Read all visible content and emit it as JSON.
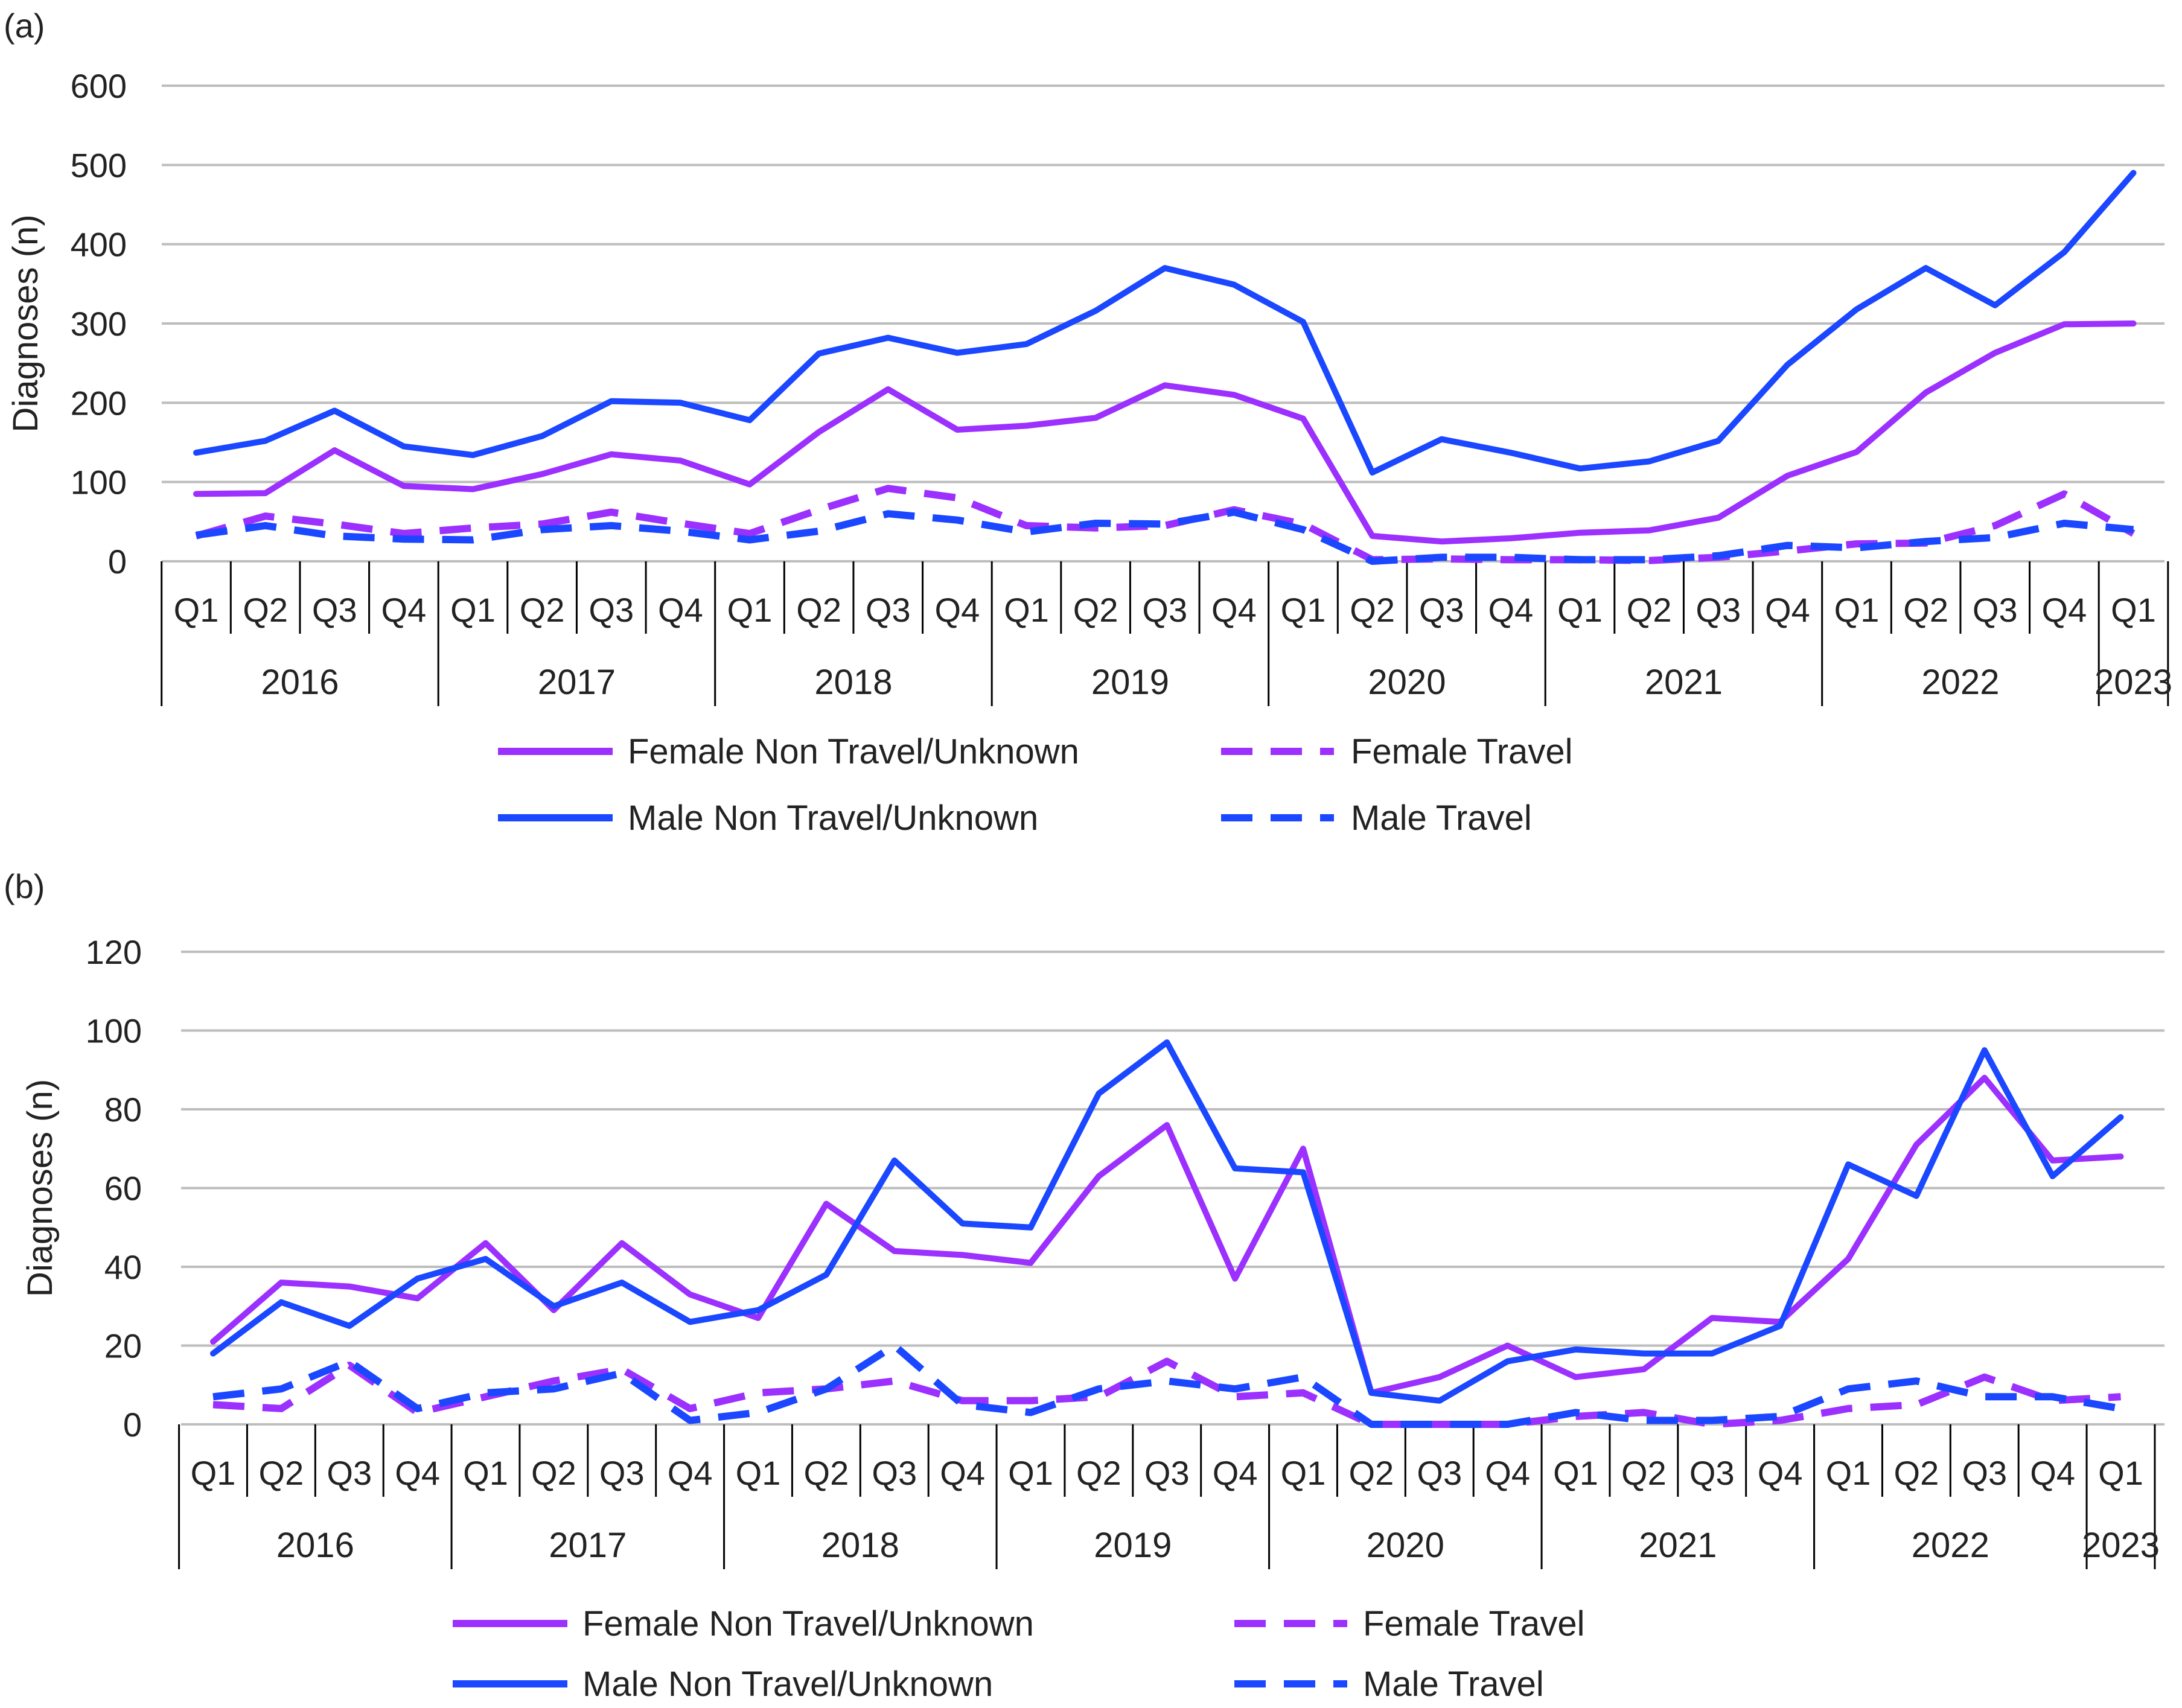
{
  "chart_data": [
    {
      "type": "line",
      "panel_label": "(a)",
      "ylabel": "Diagnoses (n)",
      "ylim": [
        0,
        600
      ],
      "yticks": [
        0,
        100,
        200,
        300,
        400,
        500,
        600
      ],
      "quarters": [
        "Q1",
        "Q2",
        "Q3",
        "Q4",
        "Q1",
        "Q2",
        "Q3",
        "Q4",
        "Q1",
        "Q2",
        "Q3",
        "Q4",
        "Q1",
        "Q2",
        "Q3",
        "Q4",
        "Q1",
        "Q2",
        "Q3",
        "Q4",
        "Q1",
        "Q2",
        "Q3",
        "Q4",
        "Q1",
        "Q2",
        "Q3",
        "Q4",
        "Q1"
      ],
      "years": [
        {
          "label": "2016",
          "quarters": 4
        },
        {
          "label": "2017",
          "quarters": 4
        },
        {
          "label": "2018",
          "quarters": 4
        },
        {
          "label": "2019",
          "quarters": 4
        },
        {
          "label": "2020",
          "quarters": 4
        },
        {
          "label": "2021",
          "quarters": 4
        },
        {
          "label": "2022",
          "quarters": 4
        },
        {
          "label": "2023",
          "quarters": 1
        }
      ],
      "series": [
        {
          "name": "Female Non Travel/Unknown",
          "color": "#9b30ff",
          "dashed": false,
          "values": [
            85,
            86,
            140,
            95,
            91,
            110,
            135,
            127,
            97,
            163,
            217,
            166,
            171,
            181,
            222,
            210,
            180,
            32,
            25,
            29,
            36,
            39,
            55,
            108,
            138,
            213,
            263,
            299,
            300
          ]
        },
        {
          "name": "Female Travel",
          "color": "#9b30ff",
          "dashed": true,
          "values": [
            32,
            57,
            47,
            35,
            42,
            47,
            62,
            48,
            35,
            65,
            92,
            80,
            45,
            42,
            45,
            65,
            47,
            2,
            3,
            2,
            2,
            1,
            5,
            13,
            22,
            23,
            45,
            85,
            35
          ]
        },
        {
          "name": "Male Non Travel/Unknown",
          "color": "#1a47ff",
          "dashed": false,
          "values": [
            137,
            152,
            190,
            145,
            134,
            158,
            202,
            200,
            178,
            262,
            282,
            263,
            274,
            316,
            370,
            349,
            302,
            112,
            154,
            137,
            117,
            126,
            152,
            248,
            318,
            370,
            323,
            390,
            490
          ]
        },
        {
          "name": "Male Travel",
          "color": "#1a47ff",
          "dashed": true,
          "values": [
            33,
            45,
            32,
            28,
            27,
            40,
            45,
            38,
            27,
            38,
            60,
            52,
            37,
            48,
            47,
            62,
            40,
            0,
            5,
            5,
            2,
            2,
            7,
            20,
            17,
            25,
            30,
            48,
            40
          ]
        }
      ]
    },
    {
      "type": "line",
      "panel_label": "(b)",
      "ylabel": "Diagnoses (n)",
      "ylim": [
        0,
        120
      ],
      "yticks": [
        0,
        20,
        40,
        60,
        80,
        100,
        120
      ],
      "quarters": [
        "Q1",
        "Q2",
        "Q3",
        "Q4",
        "Q1",
        "Q2",
        "Q3",
        "Q4",
        "Q1",
        "Q2",
        "Q3",
        "Q4",
        "Q1",
        "Q2",
        "Q3",
        "Q4",
        "Q1",
        "Q2",
        "Q3",
        "Q4",
        "Q1",
        "Q2",
        "Q3",
        "Q4",
        "Q1",
        "Q2",
        "Q3",
        "Q4",
        "Q1"
      ],
      "years": [
        {
          "label": "2016",
          "quarters": 4
        },
        {
          "label": "2017",
          "quarters": 4
        },
        {
          "label": "2018",
          "quarters": 4
        },
        {
          "label": "2019",
          "quarters": 4
        },
        {
          "label": "2020",
          "quarters": 4
        },
        {
          "label": "2021",
          "quarters": 4
        },
        {
          "label": "2022",
          "quarters": 4
        },
        {
          "label": "2023",
          "quarters": 1
        }
      ],
      "series": [
        {
          "name": "Female Non Travel/Unknown",
          "color": "#9b30ff",
          "dashed": false,
          "values": [
            21,
            36,
            35,
            32,
            46,
            29,
            46,
            33,
            27,
            56,
            44,
            43,
            41,
            63,
            76,
            37,
            70,
            8,
            12,
            20,
            12,
            14,
            27,
            26,
            42,
            71,
            88,
            67,
            68
          ]
        },
        {
          "name": "Female Travel",
          "color": "#9b30ff",
          "dashed": true,
          "values": [
            5,
            4,
            15,
            3,
            7,
            11,
            14,
            4,
            8,
            9,
            11,
            6,
            6,
            7,
            16,
            7,
            8,
            0,
            0,
            0,
            2,
            3,
            0,
            1,
            4,
            5,
            12,
            6,
            7
          ]
        },
        {
          "name": "Male Non Travel/Unknown",
          "color": "#1a47ff",
          "dashed": false,
          "values": [
            18,
            31,
            25,
            37,
            42,
            30,
            36,
            26,
            29,
            38,
            67,
            51,
            50,
            84,
            97,
            65,
            64,
            8,
            6,
            16,
            19,
            18,
            18,
            25,
            66,
            58,
            95,
            63,
            78
          ]
        },
        {
          "name": "Male Travel",
          "color": "#1a47ff",
          "dashed": true,
          "values": [
            7,
            9,
            16,
            4,
            8,
            9,
            13,
            1,
            3,
            9,
            20,
            5,
            3,
            9,
            11,
            9,
            12,
            0,
            0,
            0,
            3,
            1,
            1,
            2,
            9,
            11,
            7,
            7,
            4
          ]
        }
      ]
    }
  ]
}
